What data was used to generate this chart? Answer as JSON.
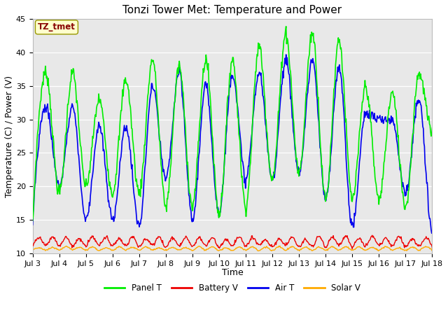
{
  "title": "Tonzi Tower Met: Temperature and Power",
  "xlabel": "Time",
  "ylabel": "Temperature (C) / Power (V)",
  "ylim": [
    10,
    45
  ],
  "xlim_days": [
    3,
    18
  ],
  "xtick_days": [
    3,
    4,
    5,
    6,
    7,
    8,
    9,
    10,
    11,
    12,
    13,
    14,
    15,
    16,
    17,
    18
  ],
  "xtick_labels": [
    "Jul 3",
    "Jul 4",
    "Jul 5",
    "Jul 6",
    "Jul 7",
    "Jul 8",
    "Jul 9",
    "Jul 10",
    "Jul 11",
    "Jul 12",
    "Jul 13",
    "Jul 14",
    "Jul 15",
    "Jul 16",
    "Jul 17",
    "Jul 18"
  ],
  "yticks": [
    10,
    15,
    20,
    25,
    30,
    35,
    40,
    45
  ],
  "panel_T_color": "#00ee00",
  "battery_V_color": "#ee0000",
  "air_T_color": "#0000ee",
  "solar_V_color": "#ffaa00",
  "bg_color": "#e8e8e8",
  "legend_labels": [
    "Panel T",
    "Battery V",
    "Air T",
    "Solar V"
  ],
  "tz_label": "TZ_tmet",
  "tz_bg": "#ffffcc",
  "tz_text_color": "#880000",
  "tz_border_color": "#999900",
  "n_points": 720,
  "start_day": 3,
  "end_day": 18,
  "panel_day_peaks": [
    37,
    37,
    33,
    36,
    39,
    38,
    39,
    39,
    41,
    43,
    43,
    42,
    35,
    34,
    37,
    37
  ],
  "panel_night_troughs": [
    14,
    19,
    20,
    19,
    19,
    17,
    17,
    16,
    17,
    21,
    22,
    18,
    18,
    18,
    17,
    28
  ],
  "air_day_peaks": [
    32,
    32,
    29,
    29,
    35,
    37,
    35,
    37,
    37,
    39,
    39,
    38,
    31,
    30,
    33,
    25
  ],
  "air_night_troughs": [
    15,
    20,
    15,
    15,
    14,
    21,
    15,
    16,
    21,
    21,
    22,
    18,
    14,
    30,
    19,
    13
  ],
  "batt_base": 11.0,
  "batt_peak": 12.3,
  "solar_base": 10.4,
  "solar_peak": 10.9
}
